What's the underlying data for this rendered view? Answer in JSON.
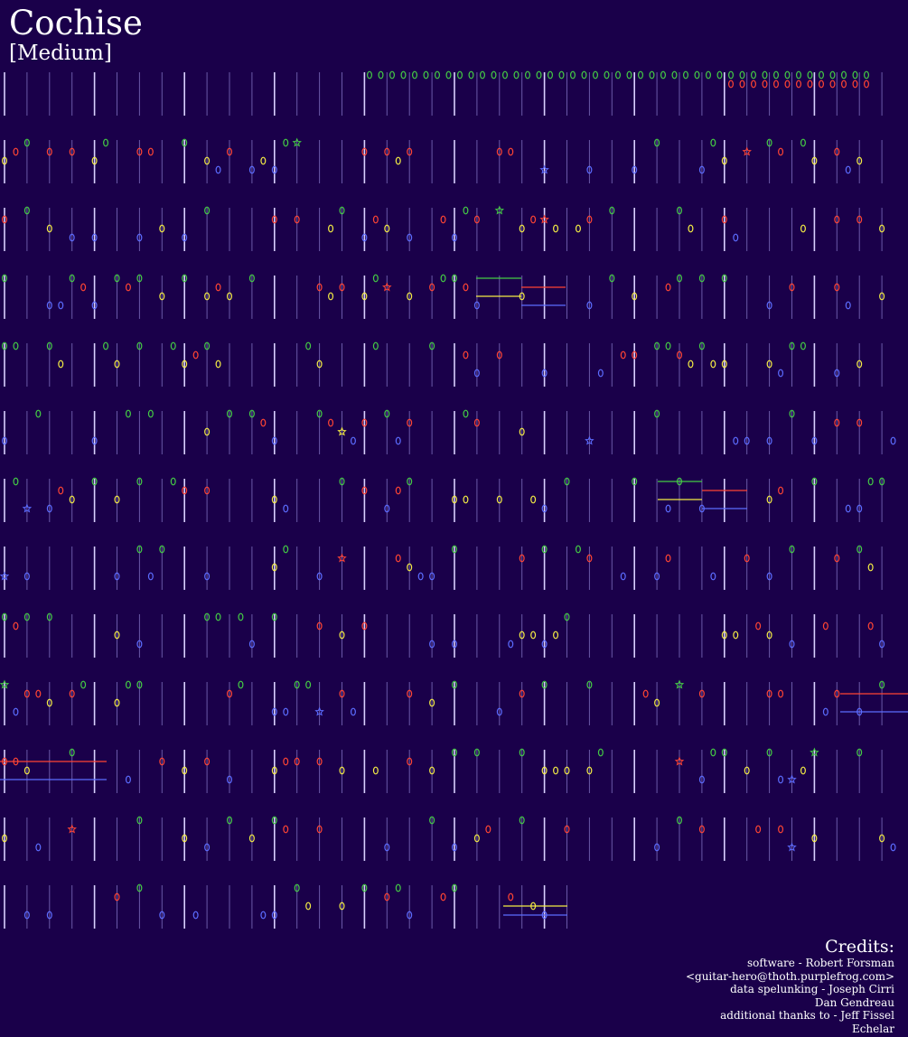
{
  "song": {
    "title": "Cochise",
    "difficulty": "[Medium]"
  },
  "colors": {
    "background": "#1a004a",
    "green": "#44cc44",
    "red": "#ff4433",
    "yellow": "#f4ec44",
    "blue": "#5c6cff",
    "orange": "#ff9922",
    "measure_line": "#d8d0ff",
    "beat_line": "#6a5aa8"
  },
  "credits": {
    "heading": "Credits:",
    "lines": [
      "software - Robert Forsman",
      "<guitar-hero@thoth.purplefrog.com>",
      "data spelunking - Joseph Cirri",
      "Dan Gendreau",
      "additional thanks to - Jeff Fissel",
      "Echelar"
    ]
  },
  "chart_data": {
    "type": "note-chart",
    "rows": 13,
    "lanes": [
      "green",
      "red",
      "yellow",
      "blue",
      "orange"
    ],
    "note_shapes": [
      "normal",
      "star-power",
      "hammer-on",
      "sustain"
    ]
  }
}
